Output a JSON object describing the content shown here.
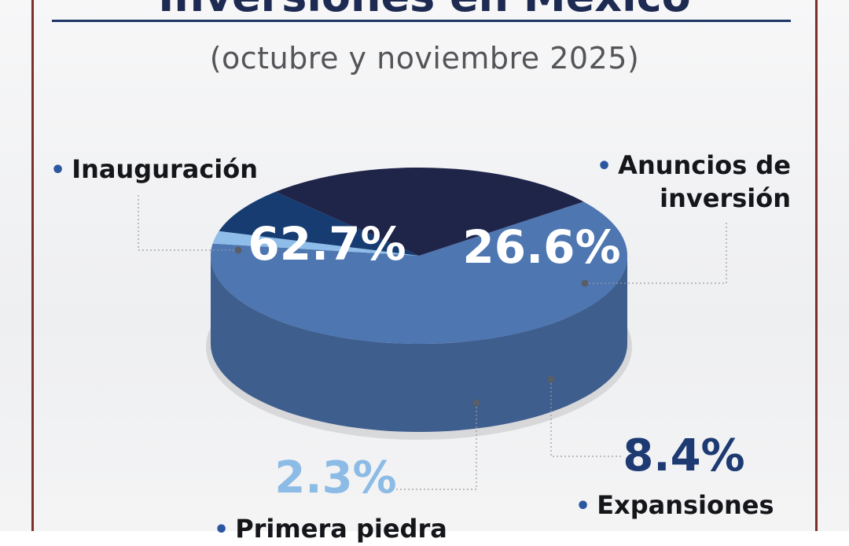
{
  "header": {
    "title": "Inversiones en México",
    "subtitle": "(octubre y noviembre 2025)"
  },
  "colors": {
    "frame": "#7d2f2c",
    "title_rule": "#1f3766",
    "bullet": "#2b56a0",
    "pct_expansiones": "#1d3a73",
    "pct_primera_piedra": "#8cbbe6"
  },
  "chart_data": {
    "type": "pie",
    "style": "3d",
    "title": "Inversiones en México",
    "subtitle": "(octubre y noviembre 2025)",
    "unit": "%",
    "slices": [
      {
        "name": "Inauguración",
        "value": 62.7,
        "label": "62.7%",
        "color": "#4e76b1"
      },
      {
        "name": "Primera piedra",
        "value": 2.3,
        "label": "2.3%",
        "color": "#8dbde8"
      },
      {
        "name": "Expansiones",
        "value": 8.4,
        "label": "8.4%",
        "color": "#163c72"
      },
      {
        "name": "Anuncios de inversión",
        "value": 26.6,
        "label": "26.6%",
        "color": "#1f2449"
      }
    ]
  },
  "labels": {
    "inauguracion": {
      "name": "Inauguración"
    },
    "anuncios_line1": "Anuncios de",
    "anuncios_line2": "inversión",
    "expansiones": "Expansiones",
    "primera_piedra": "Primera piedra"
  }
}
